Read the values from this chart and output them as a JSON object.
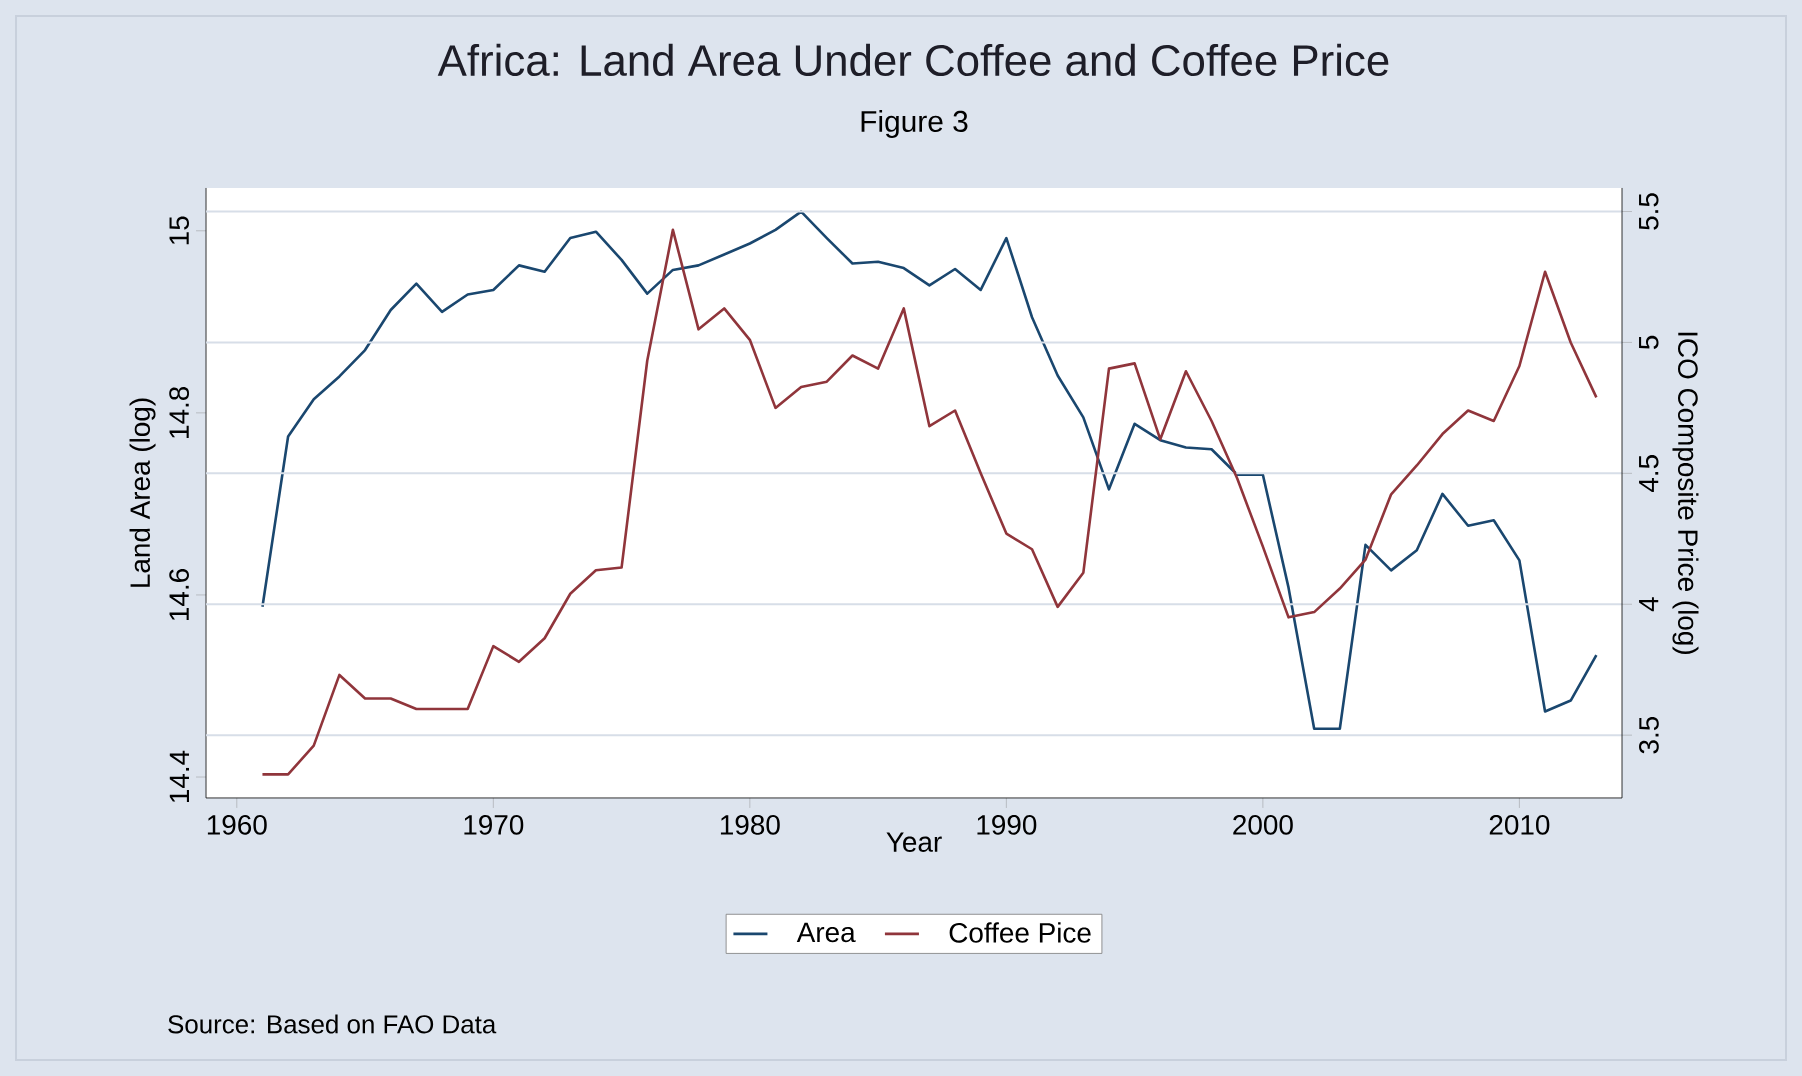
{
  "chart_data": {
    "type": "line",
    "title": "Africa: Land Area Under Coffee and Coffee Price",
    "subtitle": "Figure 3",
    "xlabel": "Year",
    "ylabel": "Land Area (log)",
    "y2label": "ICO Composite Price (log)",
    "x": [
      1961,
      1962,
      1963,
      1964,
      1965,
      1966,
      1967,
      1968,
      1969,
      1970,
      1971,
      1972,
      1973,
      1974,
      1975,
      1976,
      1977,
      1978,
      1979,
      1980,
      1981,
      1982,
      1983,
      1984,
      1985,
      1986,
      1987,
      1988,
      1989,
      1990,
      1991,
      1992,
      1993,
      1994,
      1995,
      1996,
      1997,
      1998,
      1999,
      2000,
      2001,
      2002,
      2003,
      2004,
      2005,
      2006,
      2007,
      2008,
      2009,
      2010,
      2011,
      2012,
      2013
    ],
    "series": [
      {
        "name": "Area",
        "color": "#1a476f",
        "values": [
          14.587,
          14.774,
          14.815,
          14.84,
          14.869,
          14.913,
          14.942,
          14.911,
          14.93,
          14.935,
          14.962,
          14.955,
          14.992,
          14.999,
          14.968,
          14.931,
          14.957,
          14.962,
          14.974,
          14.986,
          15.001,
          15.021,
          14.992,
          14.964,
          14.966,
          14.959,
          14.94,
          14.958,
          14.935,
          14.992,
          14.905,
          14.841,
          14.795,
          14.716,
          14.788,
          14.77,
          14.762,
          14.76,
          14.732,
          14.732,
          14.608,
          14.453,
          14.453,
          14.655,
          14.627,
          14.649,
          14.711,
          14.676,
          14.682,
          14.638,
          14.472,
          14.484,
          14.534
        ]
      },
      {
        "name": "Coffee Pice",
        "color": "#90353b",
        "axis": "y2",
        "values": [
          3.35,
          3.35,
          3.46,
          3.73,
          3.64,
          3.64,
          3.6,
          3.6,
          3.6,
          3.84,
          3.78,
          3.87,
          4.04,
          4.13,
          4.14,
          4.93,
          5.43,
          5.05,
          5.13,
          5.01,
          4.75,
          4.83,
          4.85,
          4.95,
          4.9,
          5.13,
          4.68,
          4.74,
          4.5,
          4.27,
          4.21,
          3.99,
          4.12,
          4.9,
          4.92,
          4.63,
          4.89,
          4.7,
          4.48,
          4.22,
          3.95,
          3.97,
          4.06,
          4.17,
          4.42,
          4.53,
          4.65,
          4.74,
          4.7,
          4.91,
          5.27,
          5.0,
          4.79
        ]
      }
    ],
    "xlim": [
      1958.8,
      2014
    ],
    "xticks": [
      1960,
      1970,
      1980,
      1990,
      2000,
      2010
    ],
    "ylim": [
      14.377,
      15.047
    ],
    "yticks": [
      14.4,
      14.6,
      14.8,
      15
    ],
    "y2lim": [
      3.26,
      5.59
    ],
    "y2ticks": [
      3.5,
      4,
      4.5,
      5,
      5.5
    ],
    "grid": "y2",
    "legend": "bottom",
    "line_style": "solid",
    "annotations": [
      "Source: Based on FAO Data"
    ]
  }
}
